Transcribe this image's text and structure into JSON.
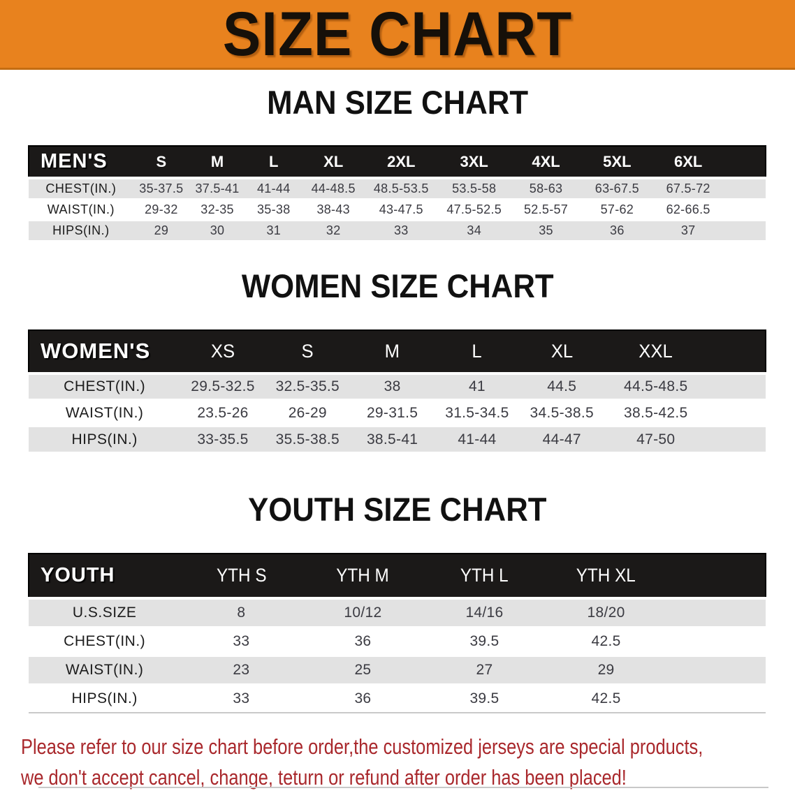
{
  "banner": {
    "title": "SIZE CHART",
    "bg_color": "#E8821E",
    "text_color": "#161009"
  },
  "colors": {
    "header_bar": "#1b1918",
    "row_gray": "#E2E2E2",
    "row_white": "#FFFFFF",
    "disclaimer_red": "#A9282C"
  },
  "sections": [
    {
      "heading": "MAN SIZE CHART",
      "table": {
        "header_label": "MEN'S",
        "columns": [
          "S",
          "M",
          "L",
          "XL",
          "2XL",
          "3XL",
          "4XL",
          "5XL",
          "6XL"
        ],
        "rows": [
          {
            "label": "CHEST(IN.)",
            "values": [
              "35-37.5",
              "37.5-41",
              "41-44",
              "44-48.5",
              "48.5-53.5",
              "53.5-58",
              "58-63",
              "63-67.5",
              "67.5-72"
            ]
          },
          {
            "label": "WAIST(IN.)",
            "values": [
              "29-32",
              "32-35",
              "35-38",
              "38-43",
              "43-47.5",
              "47.5-52.5",
              "52.5-57",
              "57-62",
              "62-66.5"
            ]
          },
          {
            "label": "HIPS(IN.)",
            "values": [
              "29",
              "30",
              "31",
              "32",
              "33",
              "34",
              "35",
              "36",
              "37"
            ]
          }
        ]
      }
    },
    {
      "heading": "WOMEN SIZE CHART",
      "table": {
        "header_label": "WOMEN'S",
        "columns": [
          "XS",
          "S",
          "M",
          "L",
          "XL",
          "XXL"
        ],
        "rows": [
          {
            "label": "CHEST(IN.)",
            "values": [
              "29.5-32.5",
              "32.5-35.5",
              "38",
              "41",
              "44.5",
              "44.5-48.5"
            ]
          },
          {
            "label": "WAIST(IN.)",
            "values": [
              "23.5-26",
              "26-29",
              "29-31.5",
              "31.5-34.5",
              "34.5-38.5",
              "38.5-42.5"
            ]
          },
          {
            "label": "HIPS(IN.)",
            "values": [
              "33-35.5",
              "35.5-38.5",
              "38.5-41",
              "41-44",
              "44-47",
              "47-50"
            ]
          }
        ]
      }
    },
    {
      "heading": "YOUTH SIZE CHART",
      "table": {
        "header_label": "YOUTH",
        "columns": [
          "YTH S",
          "YTH M",
          "YTH L",
          "YTH XL"
        ],
        "rows": [
          {
            "label": "U.S.SIZE",
            "values": [
              "8",
              "10/12",
              "14/16",
              "18/20"
            ]
          },
          {
            "label": "CHEST(IN.)",
            "values": [
              "33",
              "36",
              "39.5",
              "42.5"
            ]
          },
          {
            "label": "WAIST(IN.)",
            "values": [
              "23",
              "25",
              "27",
              "29"
            ]
          },
          {
            "label": "HIPS(IN.)",
            "values": [
              "33",
              "36",
              "39.5",
              "42.5"
            ]
          }
        ]
      }
    }
  ],
  "disclaimer": {
    "lines": [
      "Please refer to our size chart before order,the customized jerseys are special products,",
      "we don't accept cancel, change, teturn or refund after order has been placed!"
    ]
  }
}
